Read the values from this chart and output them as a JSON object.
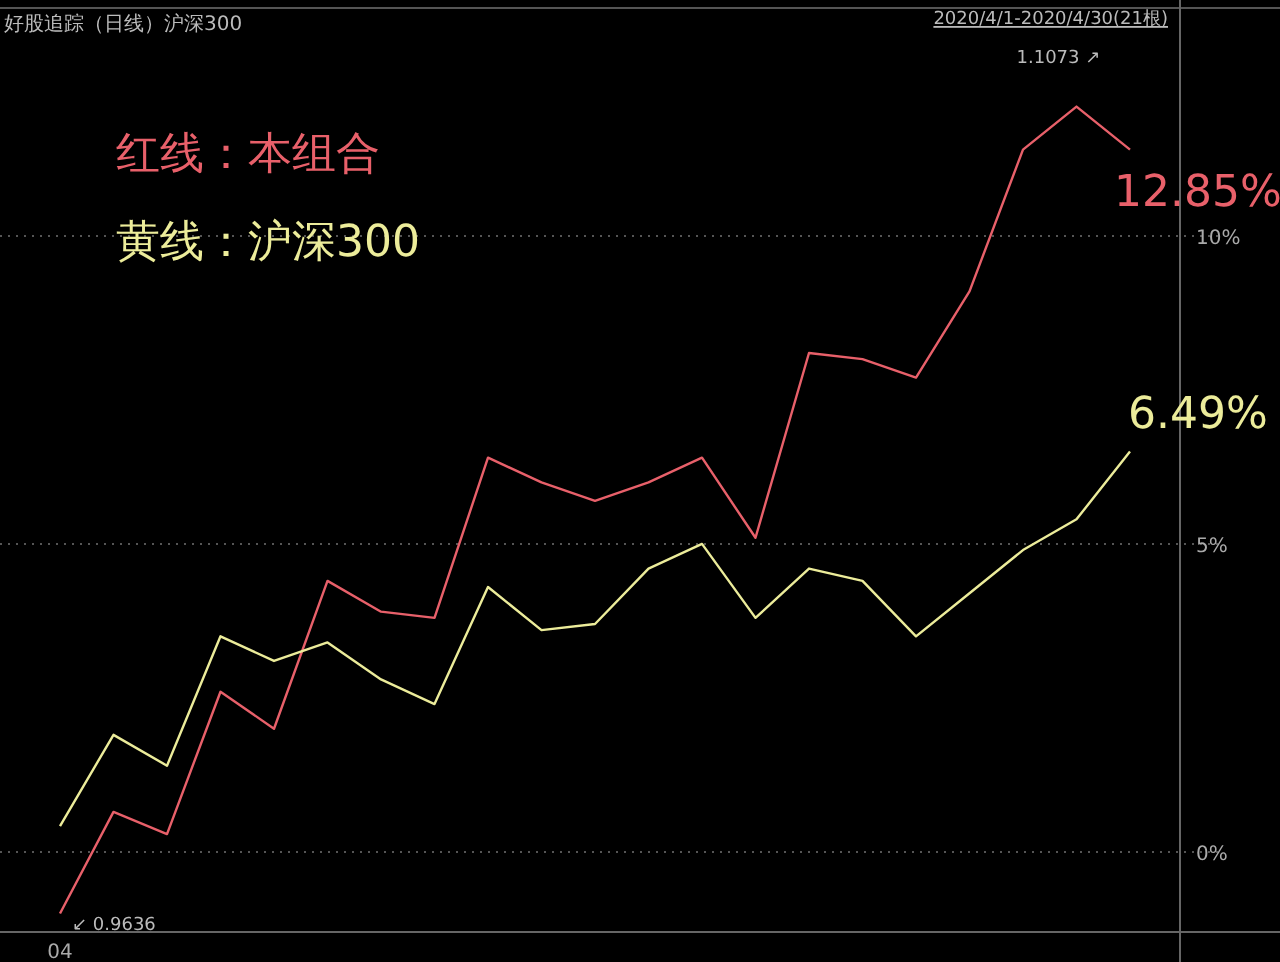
{
  "chart_data": {
    "type": "line",
    "title": "好股追踪（日线）沪深300",
    "subtitle": "2020/4/1-2020/4/30(21根)",
    "categories": [
      "04",
      null,
      null,
      null,
      null,
      null,
      null,
      null,
      null,
      null,
      null,
      null,
      null,
      null,
      null,
      null,
      null,
      null,
      null,
      null,
      null
    ],
    "series": [
      {
        "name": "红线：本组合",
        "color": "#e8606a",
        "values": [
          -1.0,
          0.65,
          0.29,
          2.6,
          2.0,
          4.4,
          3.9,
          3.8,
          6.4,
          6.0,
          5.7,
          6.0,
          6.4,
          5.1,
          8.1,
          8.0,
          7.7,
          9.1,
          11.4,
          12.1,
          11.4
        ]
      },
      {
        "name": "黄线：沪深300",
        "color": "#ecec9a",
        "values": [
          0.42,
          1.9,
          1.4,
          3.5,
          3.1,
          3.4,
          2.8,
          2.4,
          4.3,
          3.6,
          3.7,
          4.6,
          5.0,
          3.8,
          4.6,
          4.4,
          3.5,
          4.2,
          4.9,
          5.4,
          6.5
        ]
      }
    ],
    "annotations": [
      "12.85%",
      "6.49%",
      "1.1073 ↗",
      "↙ 0.9636"
    ],
    "ylim": [
      -1.3,
      13.7
    ],
    "yticks": [
      {
        "value": 0,
        "label": "0%"
      },
      {
        "value": 5,
        "label": "5%"
      },
      {
        "value": 10,
        "label": "10%"
      }
    ],
    "grid": "y",
    "legend": "top left",
    "line_style": "solid",
    "marker": "none"
  }
}
